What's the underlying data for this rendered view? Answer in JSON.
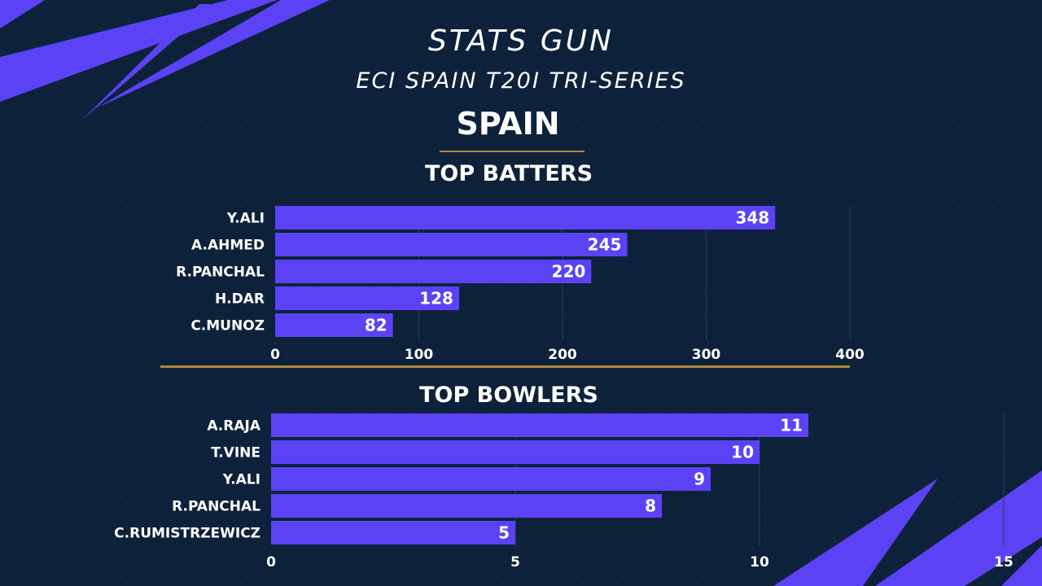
{
  "header": {
    "title": "STATS GUN",
    "subtitle": "ECI SPAIN T20I TRI-SERIES",
    "team": "SPAIN"
  },
  "colors": {
    "background": "#0e213a",
    "bar": "#5b43f5",
    "accent_line": "#b08a3c",
    "decor": "#5b43f5"
  },
  "chart_data": [
    {
      "type": "bar",
      "orientation": "horizontal",
      "title": "TOP BATTERS",
      "categories": [
        "Y.ALI",
        "A.AHMED",
        "R.PANCHAL",
        "H.DAR",
        "C.MUNOZ"
      ],
      "values": [
        348,
        245,
        220,
        128,
        82
      ],
      "xlim": [
        0,
        400
      ],
      "ticks": [
        "0",
        "100",
        "200",
        "300",
        "400"
      ],
      "tick_values": [
        0,
        100,
        200,
        300,
        400
      ],
      "grid": true,
      "data_labels": true
    },
    {
      "type": "bar",
      "orientation": "horizontal",
      "title": "TOP BOWLERS",
      "categories": [
        "A.RAJA",
        "T.VINE",
        "Y.ALI",
        "R.PANCHAL",
        "C.RUMISTRZEWICZ"
      ],
      "values": [
        11,
        10,
        9,
        8,
        5
      ],
      "xlim": [
        0,
        15
      ],
      "ticks": [
        "0",
        "5",
        "10",
        "15"
      ],
      "tick_values": [
        0,
        5,
        10,
        15
      ],
      "grid": true,
      "data_labels": true
    }
  ]
}
